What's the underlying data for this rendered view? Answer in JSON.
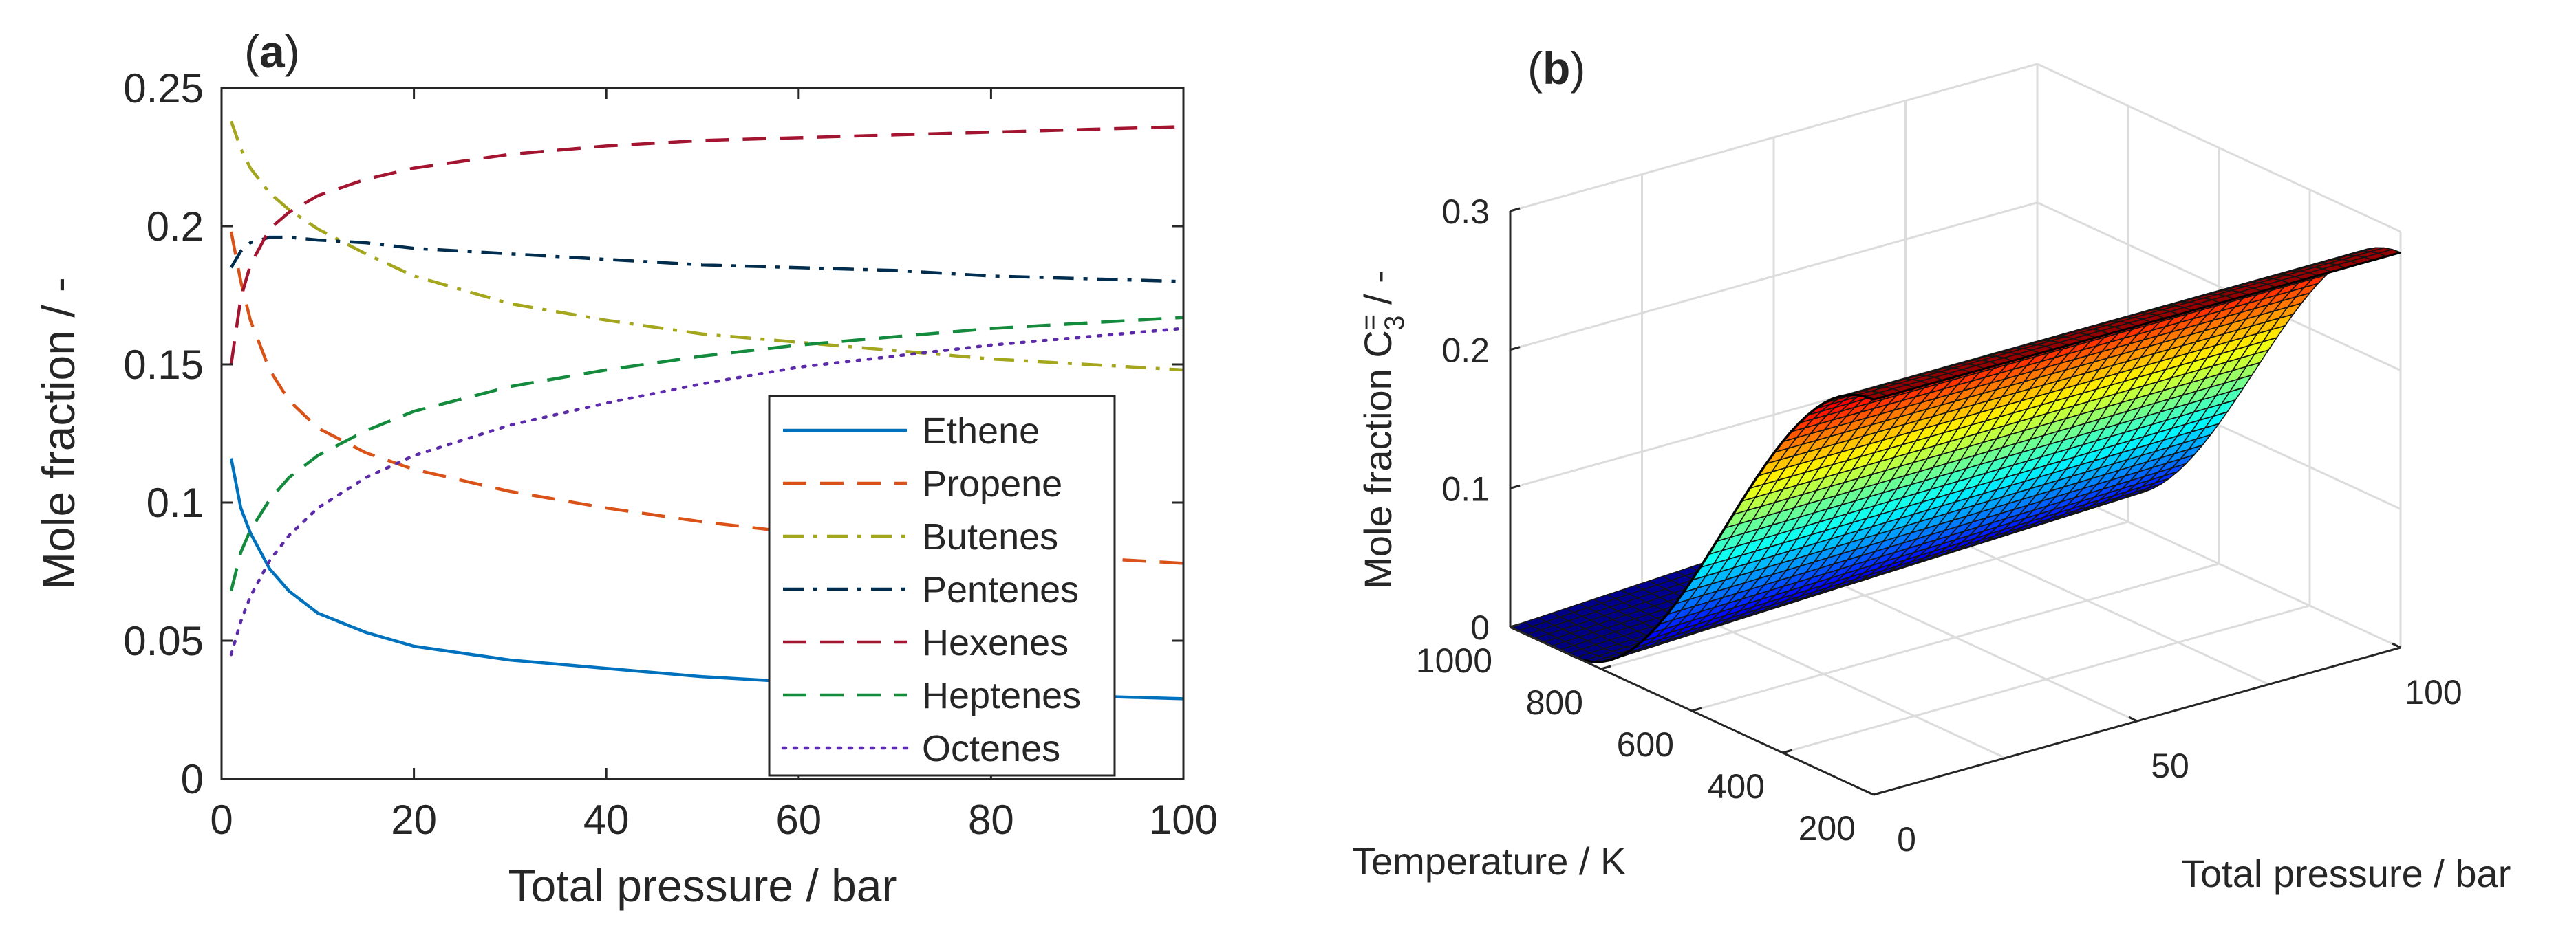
{
  "chart_data": [
    {
      "type": "line",
      "panel_label": "a",
      "xlabel": "Total pressure / bar",
      "ylabel": "Mole fraction / -",
      "xlim": [
        0,
        100
      ],
      "ylim": [
        0,
        0.25
      ],
      "xticks": [
        "0",
        "20",
        "40",
        "60",
        "80",
        "100"
      ],
      "yticks": [
        "0",
        "0.05",
        "0.1",
        "0.15",
        "0.2",
        "0.25"
      ],
      "legend_position": "bottom-right",
      "x": [
        1,
        2,
        3,
        5,
        7,
        10,
        15,
        20,
        30,
        40,
        50,
        60,
        70,
        80,
        90,
        100
      ],
      "series": [
        {
          "name": "Ethene",
          "color": "#0072BD",
          "dash": "solid",
          "values": [
            0.116,
            0.098,
            0.089,
            0.076,
            0.068,
            0.06,
            0.053,
            0.048,
            0.043,
            0.04,
            0.037,
            0.035,
            0.033,
            0.032,
            0.03,
            0.029
          ]
        },
        {
          "name": "Propene",
          "color": "#D95319",
          "dash": "dashed",
          "values": [
            0.198,
            0.18,
            0.166,
            0.148,
            0.137,
            0.127,
            0.118,
            0.112,
            0.104,
            0.098,
            0.093,
            0.089,
            0.086,
            0.083,
            0.08,
            0.078
          ]
        },
        {
          "name": "Butenes",
          "color": "#A4A71E",
          "dash": "dashdot",
          "values": [
            0.238,
            0.228,
            0.221,
            0.212,
            0.206,
            0.199,
            0.19,
            0.182,
            0.172,
            0.166,
            0.161,
            0.158,
            0.155,
            0.152,
            0.15,
            0.148
          ]
        },
        {
          "name": "Pentenes",
          "color": "#002D4D",
          "dash": "dashdot",
          "values": [
            0.185,
            0.191,
            0.194,
            0.196,
            0.196,
            0.195,
            0.194,
            0.192,
            0.19,
            0.188,
            0.186,
            0.185,
            0.184,
            0.182,
            0.181,
            0.18
          ]
        },
        {
          "name": "Hexenes",
          "color": "#A2142F",
          "dash": "dashed",
          "values": [
            0.15,
            0.174,
            0.186,
            0.199,
            0.205,
            0.211,
            0.217,
            0.221,
            0.226,
            0.229,
            0.231,
            0.232,
            0.233,
            0.234,
            0.235,
            0.236
          ]
        },
        {
          "name": "Heptenes",
          "color": "#138A3C",
          "dash": "dashed",
          "values": [
            0.068,
            0.082,
            0.09,
            0.101,
            0.109,
            0.117,
            0.126,
            0.133,
            0.142,
            0.148,
            0.153,
            0.157,
            0.16,
            0.163,
            0.165,
            0.167
          ]
        },
        {
          "name": "Octenes",
          "color": "#5A2AA8",
          "dash": "dotted",
          "values": [
            0.045,
            0.057,
            0.066,
            0.079,
            0.088,
            0.098,
            0.109,
            0.117,
            0.128,
            0.136,
            0.143,
            0.149,
            0.153,
            0.157,
            0.16,
            0.163
          ]
        }
      ]
    },
    {
      "type": "surface3d",
      "panel_label": "b",
      "zlabel": "Mole fraction C",
      "zlabel_sub": "3",
      "zlabel_sup": "=",
      "zlabel_suffix": " / -",
      "xlabel": "Temperature / K",
      "ylabel": "Total pressure / bar",
      "zlim": [
        0,
        0.3
      ],
      "xlim": [
        200,
        1000
      ],
      "ylim": [
        0,
        100
      ],
      "zticks": [
        "0",
        "0.1",
        "0.2",
        "0.3"
      ],
      "xticks": [
        "1000",
        "800",
        "600",
        "400",
        "200"
      ],
      "yticks": [
        "0",
        "50",
        "100"
      ],
      "colormap": "jet",
      "description_values": {
        "low_temperature_fraction": 0.29,
        "high_temperature_fraction_at_0_bar": 0.0,
        "high_temperature_fraction_at_100_bar": 0.02
      }
    }
  ]
}
